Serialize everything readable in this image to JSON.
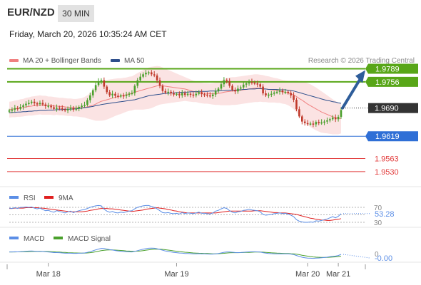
{
  "header": {
    "symbol": "EUR/NZD",
    "timeframe": "30 MIN",
    "timestamp": "Friday, March 20, 2026 10:35:24 AM CET"
  },
  "legend": {
    "ma20_label": "MA 20 + Bollinger Bands",
    "ma20_color": "#f08080",
    "ma50_label": "MA 50",
    "ma50_color": "#2e4f8c",
    "copyright": "Research © 2026 Trading Central"
  },
  "chart_data": [
    {
      "type": "candlestick",
      "title": "EUR/NZD",
      "timeframe": "30 MIN",
      "x_labels": [
        "Mar 18",
        "Mar 19",
        "Mar 20",
        "Mar 21"
      ],
      "y_range": [
        1.951,
        1.9815
      ],
      "current_price": 1.969,
      "levels": [
        {
          "value": 1.9789,
          "label": "1.9789",
          "kind": "resistance",
          "color": "#58a618"
        },
        {
          "value": 1.9756,
          "label": "1.9756",
          "kind": "resistance",
          "color": "#58a618"
        },
        {
          "value": 1.9619,
          "label": "1.9619",
          "kind": "support",
          "color": "#2f6fd6"
        },
        {
          "value": 1.9563,
          "label": "1.9563",
          "kind": "support",
          "color": "#e23b3b"
        },
        {
          "value": 1.953,
          "label": "1.9530",
          "kind": "support",
          "color": "#e23b3b"
        }
      ],
      "forecast_arrow": {
        "from": 1.969,
        "to": 1.9789,
        "direction": "up",
        "color": "#2e5d9a"
      },
      "bull_color": "#4aa02c",
      "bear_color": "#c0392b",
      "closes": [
        1.9684,
        1.9686,
        1.969,
        1.9688,
        1.9693,
        1.9697,
        1.9701,
        1.9703,
        1.9706,
        1.9702,
        1.97,
        1.9703,
        1.9699,
        1.9695,
        1.9696,
        1.9692,
        1.9688,
        1.9691,
        1.969,
        1.9687,
        1.9684,
        1.9688,
        1.969,
        1.9686,
        1.9689,
        1.9693,
        1.9696,
        1.9698,
        1.971,
        1.9722,
        1.9735,
        1.9748,
        1.9757,
        1.976,
        1.9744,
        1.973,
        1.9722,
        1.9726,
        1.9721,
        1.9719,
        1.9722,
        1.972,
        1.9723,
        1.9726,
        1.9728,
        1.9746,
        1.976,
        1.9769,
        1.9775,
        1.9779,
        1.978,
        1.9775,
        1.9772,
        1.976,
        1.9746,
        1.9733,
        1.9729,
        1.9731,
        1.9727,
        1.9724,
        1.9726,
        1.9722,
        1.9728,
        1.9723,
        1.9726,
        1.9724,
        1.9722,
        1.9726,
        1.973,
        1.9725,
        1.9724,
        1.9722,
        1.972,
        1.9724,
        1.9733,
        1.9739,
        1.975,
        1.976,
        1.9758,
        1.9746,
        1.9736,
        1.9732,
        1.9739,
        1.9742,
        1.9749,
        1.9752,
        1.9756,
        1.9754,
        1.9752,
        1.975,
        1.9744,
        1.9727,
        1.9722,
        1.9724,
        1.9726,
        1.9729,
        1.9731,
        1.9734,
        1.973,
        1.9731,
        1.9728,
        1.9722,
        1.9711,
        1.9687,
        1.9669,
        1.9656,
        1.9652,
        1.965,
        1.9651,
        1.9649,
        1.9655,
        1.9652,
        1.9654,
        1.9656,
        1.9659,
        1.9662,
        1.9666,
        1.9662,
        1.9668,
        1.9685
      ],
      "ma20": [
        1.9686,
        1.9687,
        1.9688,
        1.9689,
        1.969,
        1.9691,
        1.9693,
        1.9694,
        1.9695,
        1.9696,
        1.9697,
        1.9698,
        1.9697,
        1.9697,
        1.9696,
        1.9696,
        1.9695,
        1.9695,
        1.9694,
        1.9694,
        1.9693,
        1.9692,
        1.9692,
        1.9691,
        1.9691,
        1.9691,
        1.9691,
        1.9692,
        1.9693,
        1.9695,
        1.9697,
        1.97,
        1.9704,
        1.9707,
        1.9709,
        1.9711,
        1.9713,
        1.9715,
        1.9717,
        1.9719,
        1.972,
        1.9722,
        1.9724,
        1.9726,
        1.9727,
        1.973,
        1.9732,
        1.9734,
        1.9736,
        1.9738,
        1.974,
        1.9742,
        1.9744,
        1.9746,
        1.9747,
        1.9746,
        1.9745,
        1.9744,
        1.9743,
        1.9742,
        1.9741,
        1.974,
        1.9739,
        1.9738,
        1.9736,
        1.9734,
        1.9732,
        1.9731,
        1.9729,
        1.9728,
        1.9727,
        1.9727,
        1.9726,
        1.9726,
        1.9726,
        1.9727,
        1.9728,
        1.973,
        1.9731,
        1.9732,
        1.9733,
        1.9733,
        1.9734,
        1.9735,
        1.9736,
        1.9737,
        1.9738,
        1.9739,
        1.974,
        1.974,
        1.974,
        1.9739,
        1.9738,
        1.9737,
        1.9736,
        1.9735,
        1.9734,
        1.9733,
        1.9731,
        1.973,
        1.9728,
        1.9726,
        1.9723,
        1.9719,
        1.9714,
        1.971,
        1.9705,
        1.97,
        1.9696,
        1.9692,
        1.9688,
        1.9684,
        1.968,
        1.9677,
        1.9674,
        1.9671,
        1.9668,
        1.9666,
        1.9664,
        1.9664
      ],
      "ma50": [
        1.9678,
        1.9679,
        1.9679,
        1.968,
        1.968,
        1.9681,
        1.9681,
        1.9682,
        1.9682,
        1.9683,
        1.9683,
        1.9684,
        1.9684,
        1.9684,
        1.9685,
        1.9685,
        1.9685,
        1.9686,
        1.9686,
        1.9686,
        1.9687,
        1.9687,
        1.9687,
        1.9688,
        1.9688,
        1.9689,
        1.969,
        1.9691,
        1.9692,
        1.9693,
        1.9694,
        1.9696,
        1.9697,
        1.9699,
        1.97,
        1.9701,
        1.9702,
        1.9703,
        1.9704,
        1.9705,
        1.9706,
        1.9707,
        1.9708,
        1.9709,
        1.971,
        1.9711,
        1.9713,
        1.9715,
        1.9717,
        1.9719,
        1.9721,
        1.9722,
        1.9723,
        1.9724,
        1.9725,
        1.9726,
        1.9727,
        1.9727,
        1.9728,
        1.9728,
        1.9729,
        1.9729,
        1.973,
        1.973,
        1.973,
        1.9731,
        1.9731,
        1.9731,
        1.9732,
        1.9732,
        1.9732,
        1.9732,
        1.9733,
        1.9733,
        1.9733,
        1.9733,
        1.9734,
        1.9734,
        1.9735,
        1.9735,
        1.9735,
        1.9735,
        1.9736,
        1.9736,
        1.9737,
        1.9737,
        1.9738,
        1.9738,
        1.9738,
        1.9739,
        1.9739,
        1.9738,
        1.9738,
        1.9737,
        1.9737,
        1.9737,
        1.9737,
        1.9736,
        1.9736,
        1.9736,
        1.9735,
        1.9734,
        1.9733,
        1.9731,
        1.9729,
        1.9727,
        1.9725,
        1.9723,
        1.9721,
        1.9719,
        1.9717,
        1.9715,
        1.9713,
        1.9711,
        1.9709,
        1.9708,
        1.9706,
        1.9705,
        1.9703,
        1.9702
      ],
      "bb_width": [
        0.002,
        0.002,
        0.0021,
        0.0021,
        0.0022,
        0.0022,
        0.0023,
        0.0023,
        0.0024,
        0.0024,
        0.0024,
        0.0024,
        0.0024,
        0.0024,
        0.0023,
        0.0023,
        0.0023,
        0.0022,
        0.0022,
        0.0022,
        0.0022,
        0.0022,
        0.0022,
        0.0022,
        0.0022,
        0.0023,
        0.0024,
        0.0026,
        0.0029,
        0.0033,
        0.0037,
        0.0042,
        0.0046,
        0.0049,
        0.005,
        0.005,
        0.0049,
        0.0048,
        0.0047,
        0.0046,
        0.0045,
        0.0044,
        0.0043,
        0.0043,
        0.0043,
        0.0044,
        0.0046,
        0.0048,
        0.005,
        0.0051,
        0.0052,
        0.0052,
        0.0051,
        0.005,
        0.0048,
        0.0046,
        0.0044,
        0.0042,
        0.004,
        0.0038,
        0.0036,
        0.0034,
        0.0032,
        0.003,
        0.0029,
        0.0028,
        0.0027,
        0.0026,
        0.0026,
        0.0026,
        0.0026,
        0.0026,
        0.0026,
        0.0027,
        0.0028,
        0.0029,
        0.0031,
        0.0033,
        0.0034,
        0.0035,
        0.0035,
        0.0035,
        0.0035,
        0.0035,
        0.0035,
        0.0035,
        0.0035,
        0.0035,
        0.0035,
        0.0035,
        0.0034,
        0.0034,
        0.0033,
        0.0033,
        0.0032,
        0.0031,
        0.0031,
        0.003,
        0.003,
        0.003,
        0.0031,
        0.0033,
        0.0036,
        0.004,
        0.0044,
        0.0048,
        0.0051,
        0.0053,
        0.0054,
        0.0054,
        0.0054,
        0.0053,
        0.0052,
        0.005,
        0.0048,
        0.0046,
        0.0044,
        0.0042,
        0.004,
        0.0038
      ]
    },
    {
      "type": "line",
      "title": "RSI",
      "series": [
        {
          "name": "RSI",
          "color": "#5b8ee6",
          "current": 53.28
        },
        {
          "name": "9MA",
          "color": "#e02020"
        }
      ],
      "levels": [
        70,
        50,
        30
      ],
      "value_label": "53.28",
      "rsi": [
        68,
        67,
        69,
        67,
        70,
        70,
        71,
        70,
        71,
        68,
        66,
        68,
        64,
        61,
        62,
        59,
        57,
        61,
        59,
        57,
        55,
        58,
        60,
        56,
        59,
        61,
        63,
        64,
        67,
        70,
        72,
        74,
        75,
        74,
        65,
        60,
        57,
        59,
        56,
        55,
        57,
        56,
        58,
        60,
        61,
        66,
        70,
        72,
        74,
        75,
        75,
        72,
        70,
        66,
        61,
        56,
        55,
        56,
        54,
        53,
        54,
        52,
        56,
        53,
        55,
        54,
        53,
        55,
        57,
        54,
        54,
        53,
        52,
        55,
        60,
        62,
        66,
        69,
        67,
        61,
        57,
        55,
        58,
        59,
        62,
        63,
        65,
        63,
        62,
        61,
        58,
        51,
        49,
        50,
        51,
        53,
        54,
        55,
        53,
        54,
        52,
        49,
        45,
        37,
        33,
        31,
        30,
        30,
        31,
        30,
        34,
        33,
        35,
        37,
        39,
        42,
        45,
        42,
        46,
        53
      ],
      "rsi_ma9": [
        67,
        67,
        68,
        68,
        68,
        68,
        69,
        69,
        69,
        69,
        69,
        68,
        68,
        67,
        66,
        65,
        64,
        63,
        62,
        61,
        60,
        59,
        58,
        58,
        58,
        58,
        58,
        59,
        60,
        62,
        63,
        64,
        66,
        67,
        67,
        67,
        66,
        66,
        65,
        64,
        63,
        62,
        61,
        60,
        59,
        60,
        61,
        62,
        63,
        65,
        66,
        67,
        68,
        69,
        68,
        67,
        66,
        64,
        63,
        61,
        60,
        58,
        57,
        56,
        55,
        55,
        55,
        55,
        55,
        55,
        55,
        55,
        55,
        55,
        55,
        56,
        57,
        58,
        59,
        60,
        60,
        60,
        60,
        60,
        60,
        60,
        60,
        60,
        61,
        61,
        61,
        60,
        59,
        58,
        57,
        56,
        56,
        55,
        55,
        55,
        54,
        53,
        52,
        51,
        49,
        47,
        45,
        43,
        41,
        40,
        38,
        37,
        36,
        36,
        35,
        35,
        36,
        37,
        38,
        40
      ]
    },
    {
      "type": "line",
      "title": "MACD",
      "series": [
        {
          "name": "MACD",
          "color": "#5b8ee6",
          "current": -0.0
        },
        {
          "name": "MACD Signal",
          "color": "#4aa02c"
        }
      ],
      "y_tick_labels": [
        "0"
      ],
      "value_label": "-0.00",
      "macd": [
        0.0003,
        0.0003,
        0.00032,
        0.00031,
        0.00034,
        0.00038,
        0.00042,
        0.00045,
        0.00047,
        0.00044,
        0.0004,
        0.00041,
        0.00037,
        0.00032,
        0.0003,
        0.00025,
        0.00019,
        0.00019,
        0.00017,
        0.00013,
        8e-05,
        8e-05,
        8e-05,
        5e-05,
        5e-05,
        7e-05,
        9e-05,
        0.00012,
        0.00022,
        0.00035,
        0.0005,
        0.00066,
        0.0008,
        0.00092,
        0.0009,
        0.0008,
        0.0007,
        0.00064,
        0.00055,
        0.00047,
        0.00042,
        0.00036,
        0.00033,
        0.00031,
        0.0003,
        0.0004,
        0.00053,
        0.00066,
        0.00078,
        0.00088,
        0.00095,
        0.00097,
        0.00095,
        0.00086,
        0.00074,
        0.0006,
        0.00048,
        0.00039,
        0.0003,
        0.00022,
        0.00017,
        0.00011,
        9e-05,
        4e-05,
        2e-05,
        0.0,
        -2e-05,
        -2e-05,
        0.0,
        -2e-05,
        -4e-05,
        -6e-05,
        -8e-05,
        -7e-05,
        -2e-05,
        4e-05,
        0.00013,
        0.00024,
        0.0003,
        0.0003,
        0.00025,
        0.0002,
        0.00019,
        0.0002,
        0.00024,
        0.00027,
        0.00031,
        0.00032,
        0.00032,
        0.00031,
        0.00028,
        0.00018,
        0.0001,
        4e-05,
        0.0,
        -2e-05,
        -2e-05,
        -1e-05,
        -2e-05,
        -2e-05,
        -4e-05,
        -8e-05,
        -0.00016,
        -0.00033,
        -0.00049,
        -0.00063,
        -0.00072,
        -0.00078,
        -0.0008,
        -0.00082,
        -0.00078,
        -0.00076,
        -0.00072,
        -0.00067,
        -0.00061,
        -0.00054,
        -0.00046,
        -0.00042,
        -0.00033,
        -0.00012
      ],
      "signal": [
        0.0003,
        0.0003,
        0.0003,
        0.00031,
        0.00031,
        0.00033,
        0.00034,
        0.00036,
        0.00038,
        0.00039,
        0.00039,
        0.0004,
        0.00039,
        0.00038,
        0.00037,
        0.00035,
        0.00032,
        0.00029,
        0.00027,
        0.00024,
        0.00021,
        0.00018,
        0.00016,
        0.00014,
        0.00012,
        0.00011,
        0.0001,
        0.0001,
        0.00013,
        0.00017,
        0.00024,
        0.00032,
        0.00042,
        0.00052,
        0.0006,
        0.00064,
        0.00065,
        0.00065,
        0.00063,
        0.0006,
        0.00056,
        0.00052,
        0.00048,
        0.00045,
        0.00042,
        0.00042,
        0.00044,
        0.00048,
        0.00054,
        0.00061,
        0.00068,
        0.00074,
        0.00078,
        0.0008,
        0.00079,
        0.00075,
        0.00069,
        0.00063,
        0.00056,
        0.00049,
        0.00042,
        0.00036,
        0.00031,
        0.00025,
        0.00021,
        0.00017,
        0.00013,
        0.0001,
        8e-05,
        6e-05,
        4e-05,
        2e-05,
        0.0,
        -2e-05,
        -2e-05,
        -1e-05,
        2e-05,
        6e-05,
        0.00011,
        0.00015,
        0.00017,
        0.00018,
        0.00018,
        0.00019,
        0.0002,
        0.00021,
        0.00023,
        0.00025,
        0.00027,
        0.00028,
        0.00028,
        0.00026,
        0.00023,
        0.00019,
        0.00015,
        0.00012,
        9e-05,
        7e-05,
        5e-05,
        3e-05,
        2e-05,
        -1e-05,
        -4e-05,
        -0.0001,
        -0.00018,
        -0.00027,
        -0.00036,
        -0.00044,
        -0.00051,
        -0.00057,
        -0.00061,
        -0.00064,
        -0.00066,
        -0.00066,
        -0.00065,
        -0.00063,
        -0.0006,
        -0.00056,
        -0.00052,
        -0.00044
      ]
    }
  ]
}
